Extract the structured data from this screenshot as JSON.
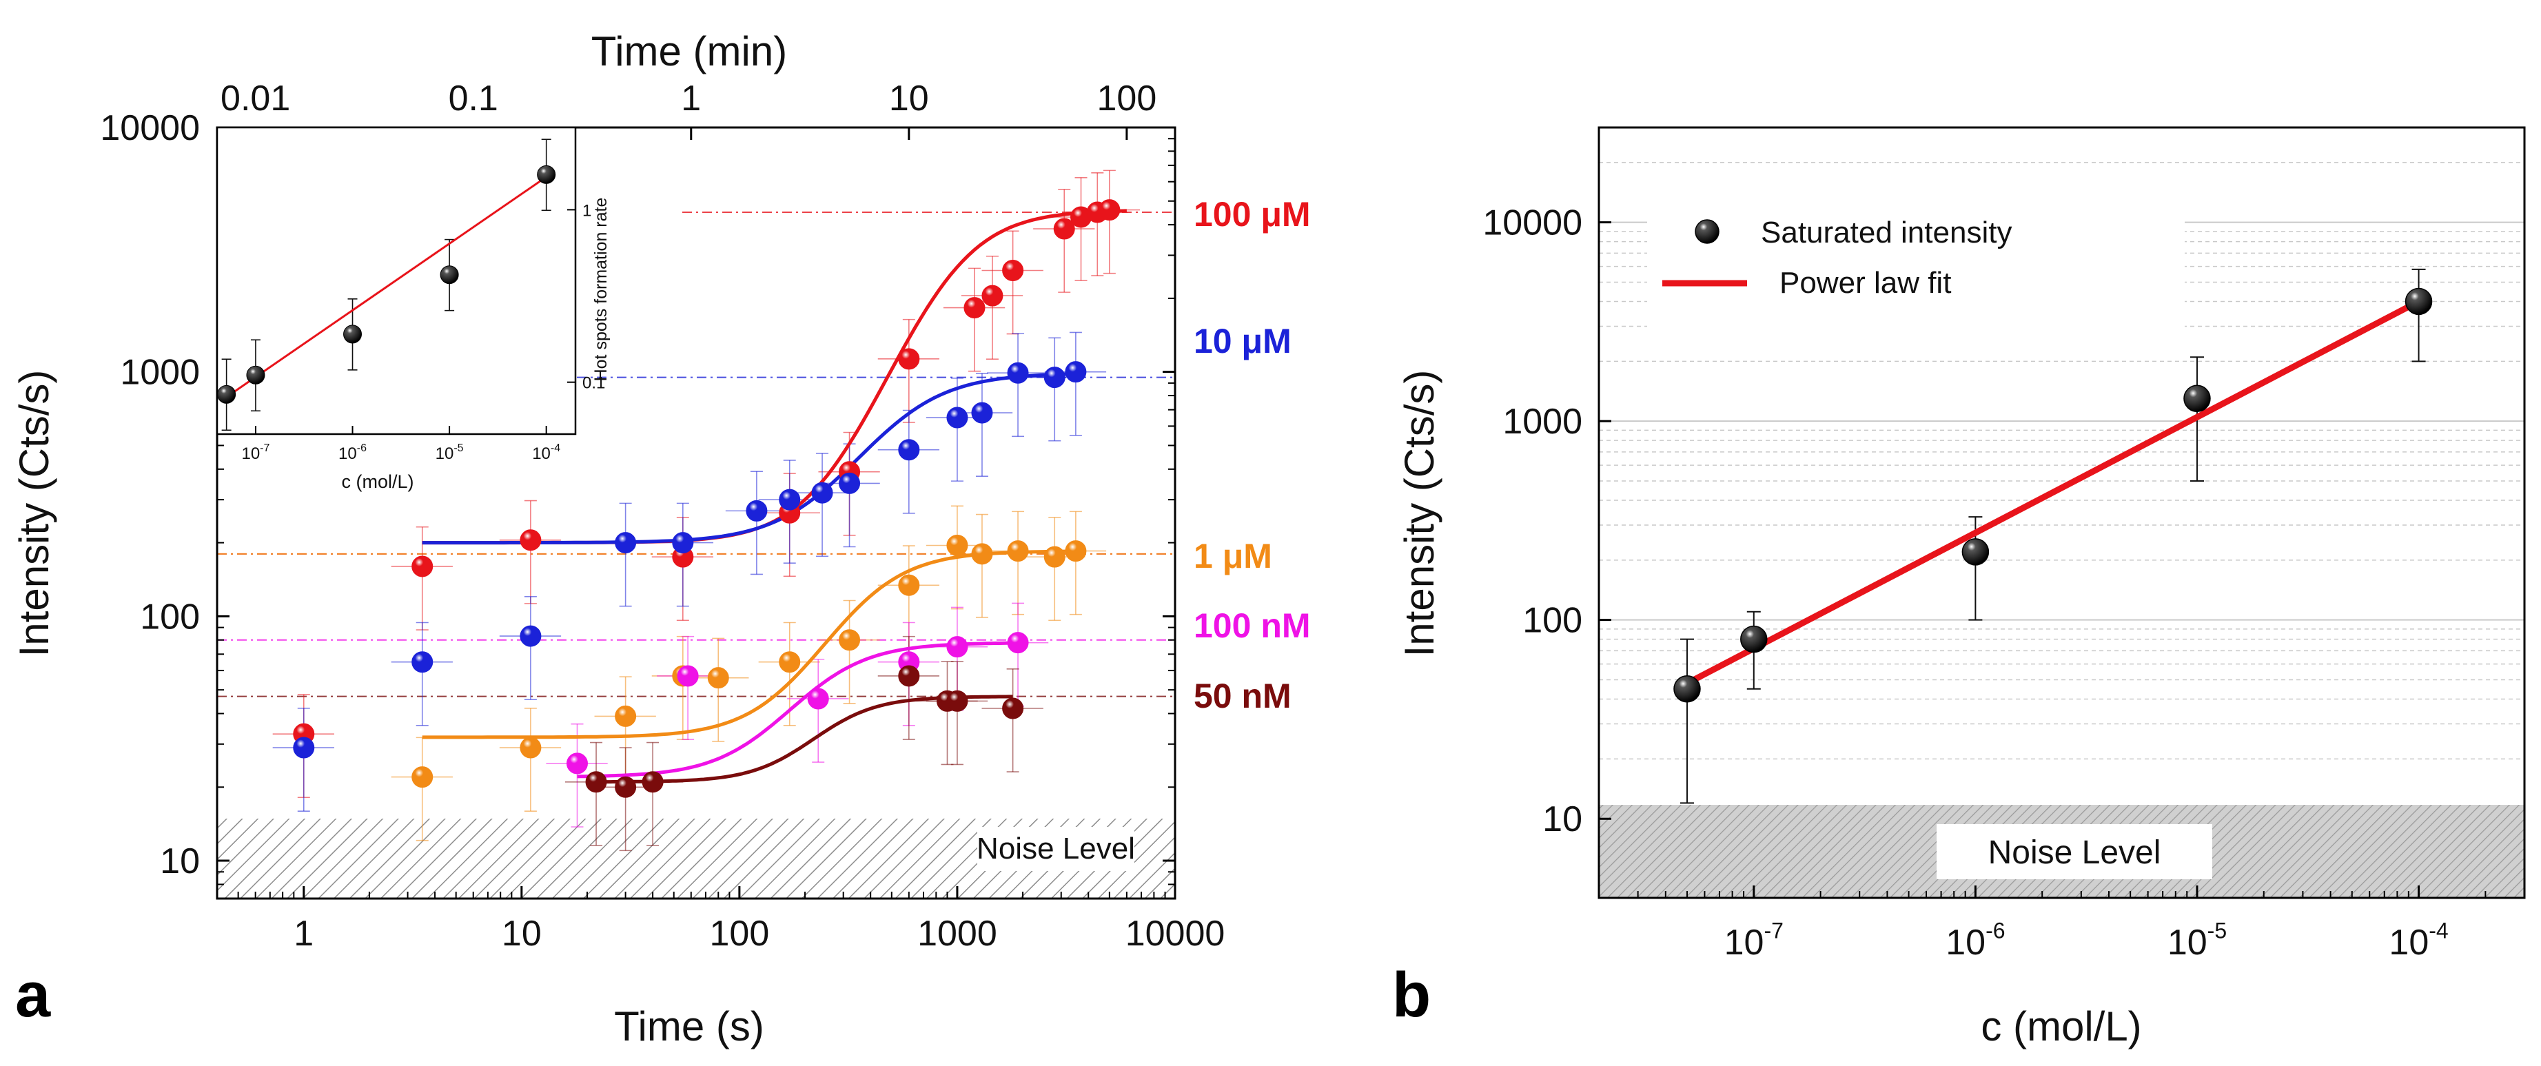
{
  "colors": {
    "red": "#e8141b",
    "blue": "#1b22d8",
    "orange": "#f28b16",
    "magenta": "#ef12e6",
    "darkred": "#7a0c0c",
    "black": "#111111",
    "noise_fill": "#d4d4d4",
    "grid": "#c9c9c9"
  },
  "chart_data": [
    {
      "panel": "a",
      "panel_label": "a",
      "type": "scatter",
      "title": "",
      "xlabel": "Time (s)",
      "ylabel": "Intensity (Cts/s)",
      "x2label": "Time (min)",
      "xscale": "log",
      "yscale": "log",
      "xlim": [
        0.4,
        10000
      ],
      "ylim": [
        7,
        10000
      ],
      "x_ticks": [
        1,
        10,
        100,
        1000,
        10000
      ],
      "x_tick_labels": [
        "1",
        "10",
        "100",
        "1000",
        "10000"
      ],
      "y_ticks": [
        10,
        100,
        1000,
        10000
      ],
      "y_tick_labels": [
        "10",
        "100",
        "1000",
        "10000"
      ],
      "x2_ticks": [
        0.01,
        0.1,
        1,
        10,
        100
      ],
      "x2_tick_labels": [
        "0.01",
        "0.1",
        "1",
        "10",
        "100"
      ],
      "noise": {
        "label": "Noise Level",
        "level": 15
      },
      "series": [
        {
          "name": "100 µM",
          "label": "100 μM",
          "color_key": "red",
          "saturation": 4500,
          "baseline": 180,
          "x": [
            1,
            3.5,
            11,
            55,
            170,
            320,
            600,
            1200,
            1450,
            1800,
            3100,
            3700,
            4400,
            5000
          ],
          "y": [
            33,
            160,
            205,
            175,
            265,
            390,
            1130,
            1830,
            2050,
            2600,
            3850,
            4300,
            4500,
            4600
          ],
          "fit": {
            "x0": 3.5,
            "x1": 6000,
            "ymin": 200,
            "ymax": 4600,
            "xc": 900,
            "n": 2.5
          }
        },
        {
          "name": "10 µM",
          "label": "10 μM",
          "color_key": "blue",
          "saturation": 950,
          "x": [
            1,
            3.5,
            11,
            30,
            55,
            120,
            170,
            240,
            320,
            600,
            1000,
            1300,
            1900,
            2800,
            3500
          ],
          "y": [
            29,
            65,
            83,
            200,
            200,
            270,
            300,
            320,
            350,
            480,
            650,
            680,
            990,
            950,
            1000
          ],
          "fit": {
            "x0": 3.5,
            "x1": 3500,
            "ymin": 200,
            "ymax": 990,
            "xc": 500,
            "n": 2.3
          }
        },
        {
          "name": "1 µM",
          "label": "1 μM",
          "color_key": "orange",
          "saturation": 180,
          "x": [
            3.5,
            11,
            30,
            55,
            80,
            170,
            320,
            600,
            1000,
            1300,
            1900,
            2800,
            3500
          ],
          "y": [
            22,
            29,
            39,
            57,
            56,
            65,
            80,
            134,
            195,
            180,
            185,
            175,
            185
          ],
          "fit": {
            "x0": 3.5,
            "x1": 3500,
            "ymin": 32,
            "ymax": 185,
            "xc": 350,
            "n": 2.5
          }
        },
        {
          "name": "100 nM",
          "label": "100 nM",
          "color_key": "magenta",
          "saturation": 80,
          "x": [
            18,
            58,
            230,
            600,
            1000,
            1900
          ],
          "y": [
            25,
            57,
            46,
            65,
            75,
            78
          ],
          "fit": {
            "x0": 18,
            "x1": 1900,
            "ymin": 22,
            "ymax": 78,
            "xc": 220,
            "n": 2.5
          }
        },
        {
          "name": "50 nM",
          "label": "50 nM",
          "color_key": "darkred",
          "saturation": 47,
          "x": [
            22,
            30,
            40,
            600,
            900,
            1000,
            1800
          ],
          "y": [
            21,
            20,
            21,
            57,
            45,
            45,
            42
          ],
          "fit": {
            "x0": 22,
            "x1": 1800,
            "ymin": 21,
            "ymax": 47,
            "xc": 250,
            "n": 3
          }
        }
      ],
      "inset": {
        "type": "scatter",
        "xlabel": "c (mol/L)",
        "ylabel": "Hot spots formation rate",
        "xscale": "log",
        "yscale": "log",
        "xlim": [
          4e-08,
          0.0002
        ],
        "ylim": [
          0.05,
          3
        ],
        "x_ticks": [
          1e-07,
          1e-06,
          1e-05,
          0.0001
        ],
        "x_tick_labels": [
          "10",
          "10",
          "10",
          "10"
        ],
        "x_tick_exponents": [
          "-7",
          "-6",
          "-5",
          "-4"
        ],
        "y_ticks": [
          0.1,
          1
        ],
        "y_tick_labels": [
          "0.1",
          "1"
        ],
        "series": [
          {
            "name": "rate",
            "x": [
              5e-08,
              1e-07,
              1e-06,
              1e-05,
              0.0001
            ],
            "y": [
              0.085,
              0.11,
              0.19,
              0.42,
              1.6
            ]
          }
        ],
        "fit": {
          "x0": 5e-08,
          "x1": 0.0001,
          "y0": 0.082,
          "y1": 1.55
        }
      }
    },
    {
      "panel": "b",
      "panel_label": "b",
      "type": "scatter",
      "title": "",
      "xlabel": "c (mol/L)",
      "ylabel": "Intensity (Cts/s)",
      "xscale": "log",
      "yscale": "log",
      "xlim": [
        2e-08,
        0.0003
      ],
      "ylim": [
        4,
        30000
      ],
      "x_ticks": [
        1e-07,
        1e-06,
        1e-05,
        0.0001
      ],
      "x_tick_labels": [
        "10",
        "10",
        "10",
        "10"
      ],
      "x_tick_exponents": [
        "-7",
        "-6",
        "-5",
        "-4"
      ],
      "y_ticks": [
        10,
        100,
        1000,
        10000
      ],
      "y_tick_labels": [
        "10",
        "100",
        "1000",
        "10000"
      ],
      "grid": true,
      "noise": {
        "label": "Noise Level",
        "level": 12
      },
      "legend": {
        "position": "top-left",
        "entries": [
          {
            "label": "Saturated intensity",
            "kind": "marker"
          },
          {
            "label": "Power law fit",
            "kind": "line"
          }
        ]
      },
      "series": [
        {
          "name": "Saturated intensity",
          "x": [
            5e-08,
            1e-07,
            1e-06,
            1e-05,
            0.0001
          ],
          "y": [
            45,
            80,
            220,
            1300,
            4000
          ],
          "yerr_low": [
            12,
            45,
            100,
            500,
            2000
          ],
          "yerr_high": [
            80,
            110,
            330,
            2100,
            5800
          ]
        }
      ],
      "fit": {
        "name": "Power law fit",
        "x0": 5e-08,
        "x1": 0.0001,
        "y0": 48,
        "y1": 4000
      }
    }
  ]
}
